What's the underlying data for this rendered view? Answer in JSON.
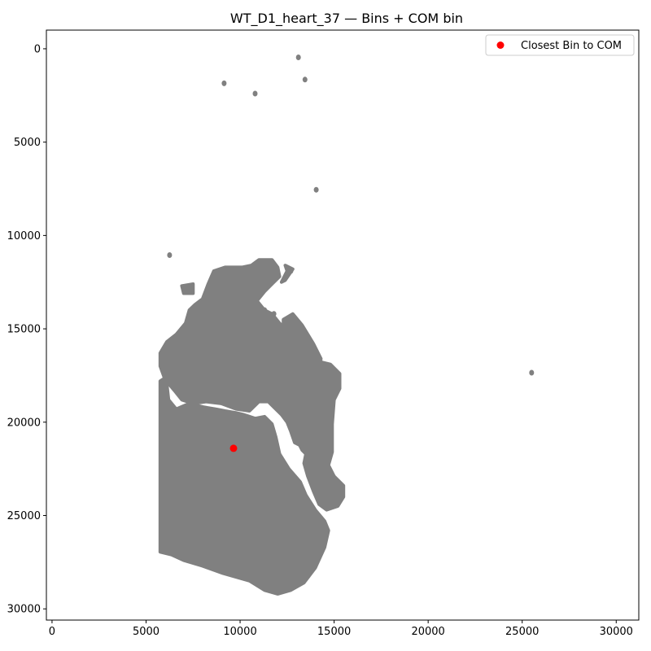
{
  "chart_data": {
    "type": "scatter",
    "title": "WT_D1_heart_37 — Bins + COM bin",
    "xlabel": "",
    "ylabel": "",
    "xlim": [
      -300,
      31200
    ],
    "ylim": [
      30600,
      -1000
    ],
    "y_inverted": true,
    "grid": false,
    "legend_placement": "upper-right",
    "x_ticks": [
      0,
      5000,
      10000,
      15000,
      20000,
      25000,
      30000
    ],
    "y_ticks": [
      0,
      5000,
      10000,
      15000,
      20000,
      25000,
      30000
    ],
    "x_tick_labels": [
      "0",
      "5000",
      "10000",
      "15000",
      "20000",
      "25000",
      "30000"
    ],
    "y_tick_labels": [
      "0",
      "5000",
      "10000",
      "15000",
      "20000",
      "25000",
      "30000"
    ],
    "series": [
      {
        "color": "#808080",
        "role": "bins",
        "regions": [
          {
            "kind": "main-tissue",
            "outline": [
              [
                5750,
                17800
              ],
              [
                5750,
                26950
              ],
              [
                6350,
                27100
              ],
              [
                7000,
                27400
              ],
              [
                8000,
                27700
              ],
              [
                9100,
                28100
              ],
              [
                10500,
                28500
              ],
              [
                11300,
                29000
              ],
              [
                12000,
                29200
              ],
              [
                12700,
                29000
              ],
              [
                13400,
                28600
              ],
              [
                14000,
                27800
              ],
              [
                14500,
                26700
              ],
              [
                14700,
                25800
              ],
              [
                14500,
                25300
              ],
              [
                14000,
                24700
              ],
              [
                13500,
                23900
              ],
              [
                13200,
                23200
              ],
              [
                12600,
                22500
              ],
              [
                12100,
                21700
              ],
              [
                11900,
                20800
              ],
              [
                11700,
                20100
              ],
              [
                11300,
                19700
              ],
              [
                10800,
                19800
              ],
              [
                10200,
                19600
              ],
              [
                9800,
                19500
              ],
              [
                9200,
                19400
              ],
              [
                8700,
                19300
              ],
              [
                8100,
                19200
              ],
              [
                7300,
                19000
              ],
              [
                6600,
                19300
              ],
              [
                6200,
                18800
              ],
              [
                6100,
                17900
              ],
              [
                5900,
                17700
              ]
            ]
          },
          {
            "kind": "upper-lobe",
            "outline": [
              [
                5750,
                17000
              ],
              [
                5750,
                16300
              ],
              [
                6100,
                15700
              ],
              [
                6600,
                15300
              ],
              [
                7100,
                14700
              ],
              [
                7300,
                14000
              ],
              [
                7600,
                13700
              ],
              [
                8000,
                13400
              ],
              [
                8300,
                12600
              ],
              [
                8600,
                11900
              ],
              [
                9200,
                11700
              ],
              [
                10100,
                11700
              ],
              [
                10600,
                11600
              ],
              [
                11000,
                11300
              ],
              [
                11700,
                11300
              ],
              [
                12000,
                11700
              ],
              [
                12100,
                12200
              ],
              [
                11700,
                12600
              ],
              [
                11300,
                13000
              ],
              [
                10900,
                13500
              ],
              [
                11300,
                14000
              ],
              [
                11700,
                14200
              ],
              [
                12100,
                14700
              ],
              [
                12600,
                15200
              ],
              [
                13100,
                15800
              ],
              [
                13400,
                16300
              ],
              [
                13700,
                16700
              ],
              [
                14400,
                16800
              ],
              [
                14800,
                16900
              ],
              [
                15300,
                17400
              ],
              [
                15300,
                18200
              ],
              [
                15000,
                18800
              ],
              [
                14900,
                20100
              ],
              [
                14900,
                21600
              ],
              [
                14700,
                22300
              ],
              [
                15000,
                22900
              ],
              [
                15500,
                23400
              ],
              [
                15500,
                24000
              ],
              [
                15200,
                24500
              ],
              [
                14600,
                24700
              ],
              [
                14200,
                24400
              ],
              [
                13900,
                23700
              ],
              [
                13600,
                22900
              ],
              [
                13400,
                22200
              ],
              [
                13500,
                21700
              ],
              [
                13300,
                21300
              ],
              [
                12900,
                21100
              ],
              [
                12700,
                20500
              ],
              [
                12500,
                20000
              ],
              [
                12200,
                19600
              ],
              [
                11800,
                19200
              ],
              [
                11500,
                18900
              ],
              [
                11000,
                18900
              ],
              [
                10500,
                19400
              ],
              [
                9800,
                19300
              ],
              [
                9000,
                19000
              ],
              [
                8200,
                18900
              ],
              [
                7500,
                19000
              ],
              [
                6900,
                18800
              ],
              [
                6500,
                18300
              ],
              [
                6000,
                17700
              ]
            ]
          },
          {
            "kind": "right-strand",
            "outline": [
              [
                12300,
                14500
              ],
              [
                12800,
                14200
              ],
              [
                13300,
                14800
              ],
              [
                13900,
                15800
              ],
              [
                14300,
                16600
              ],
              [
                14200,
                17300
              ],
              [
                13900,
                17800
              ],
              [
                13500,
                18200
              ],
              [
                13100,
                18900
              ],
              [
                13400,
                19700
              ],
              [
                13900,
                20400
              ],
              [
                14000,
                21300
              ],
              [
                13700,
                21900
              ],
              [
                13300,
                21500
              ],
              [
                12900,
                20700
              ],
              [
                12700,
                19800
              ],
              [
                12500,
                19000
              ],
              [
                12700,
                18300
              ],
              [
                13100,
                17600
              ],
              [
                13000,
                16900
              ],
              [
                12600,
                16200
              ],
              [
                12300,
                15500
              ]
            ]
          },
          {
            "kind": "small-lobe",
            "outline": [
              [
                12200,
                12500
              ],
              [
                12500,
                11900
              ],
              [
                12400,
                11600
              ],
              [
                12800,
                11800
              ],
              [
                12400,
                12400
              ]
            ]
          },
          {
            "kind": "small-lobe",
            "outline": [
              [
                6900,
                12700
              ],
              [
                7500,
                12600
              ],
              [
                7500,
                13100
              ],
              [
                7000,
                13100
              ]
            ]
          }
        ],
        "points": [
          [
            13100,
            460
          ],
          [
            13450,
            1650
          ],
          [
            9150,
            1850
          ],
          [
            10800,
            2400
          ],
          [
            14050,
            7550
          ],
          [
            6250,
            11050
          ],
          [
            25500,
            17350
          ],
          [
            11300,
            14000
          ],
          [
            11800,
            14200
          ],
          [
            12700,
            11900
          ]
        ]
      }
    ],
    "com_bin": {
      "label": "Closest Bin to COM",
      "x": 9650,
      "y": 21400,
      "color": "#ff0000"
    }
  }
}
